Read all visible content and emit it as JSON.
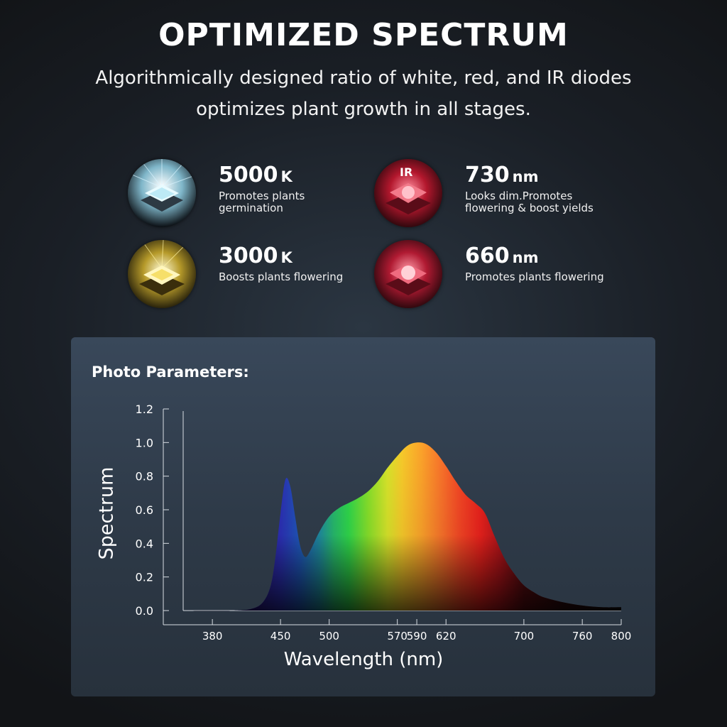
{
  "header": {
    "title": "OPTIMIZED SPECTRUM",
    "subtitle": "Algorithmically designed ratio of white, red, and IR diodes optimizes plant growth in all stages."
  },
  "diodes": [
    {
      "value": "5000",
      "unit": "K",
      "desc": "Promotes plants germination",
      "icon": "white-led-chip-icon",
      "color": "#bfe8f5"
    },
    {
      "value": "730",
      "unit": "nm",
      "desc": "Looks dim.Promotes flowering & boost yields",
      "icon": "ir-led-chip-icon",
      "icon_text": "IR",
      "color": "#e8455a"
    },
    {
      "value": "3000",
      "unit": "K",
      "desc": "Boosts plants flowering",
      "icon": "warm-led-chip-icon",
      "color": "#f7e27a"
    },
    {
      "value": "660",
      "unit": "nm",
      "desc": "Promotes plants flowering",
      "icon": "red-led-chip-icon",
      "color": "#e83a55"
    }
  ],
  "chart_data": {
    "type": "area",
    "title": "Photo Parameters:",
    "xlabel": "Wavelength (nm)",
    "ylabel": "Spectrum",
    "xlim": [
      350,
      800
    ],
    "ylim": [
      0,
      1.2
    ],
    "xticks": [
      380,
      450,
      500,
      570,
      590,
      620,
      700,
      760,
      800
    ],
    "yticks": [
      "0.0",
      "0.2",
      "0.4",
      "0.6",
      "0.8",
      "1.0",
      "1.2"
    ],
    "grid": false,
    "series": [
      {
        "x": [
          350,
          400,
          420,
          432,
          440,
          445,
          450,
          455,
          460,
          465,
          470,
          475,
          480,
          490,
          500,
          510,
          520,
          530,
          540,
          550,
          560,
          570,
          580,
          590,
          600,
          610,
          620,
          630,
          640,
          650,
          660,
          670,
          680,
          690,
          700,
          710,
          720,
          740,
          760,
          780,
          800
        ],
        "values": [
          0.0,
          0.0,
          0.01,
          0.05,
          0.15,
          0.33,
          0.58,
          0.78,
          0.74,
          0.56,
          0.39,
          0.32,
          0.35,
          0.47,
          0.56,
          0.61,
          0.64,
          0.67,
          0.71,
          0.77,
          0.85,
          0.92,
          0.98,
          1.0,
          0.99,
          0.94,
          0.86,
          0.77,
          0.69,
          0.64,
          0.58,
          0.44,
          0.31,
          0.22,
          0.15,
          0.11,
          0.08,
          0.05,
          0.03,
          0.02,
          0.02
        ]
      }
    ]
  }
}
